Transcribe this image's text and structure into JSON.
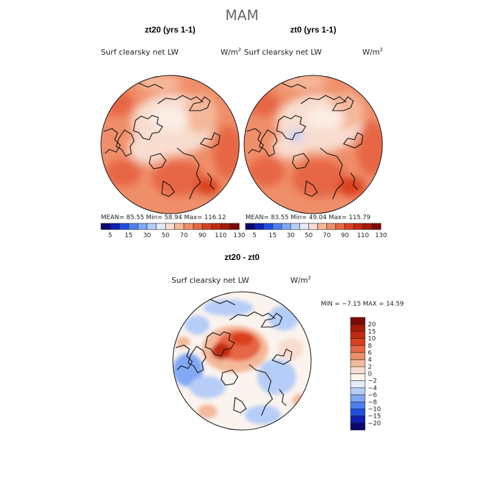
{
  "season_title": "MAM",
  "panels": {
    "zt20": {
      "title": "zt20 (yrs 1-1)",
      "variable": "Surf clearsky net LW",
      "units": "W/m",
      "units_sup": "2",
      "stats": "MEAN=   85.55   Min=   58.94   Max=  116.12"
    },
    "zt0": {
      "title": "zt0 (yrs 1-1)",
      "variable": "Surf clearsky net LW",
      "units": "W/m",
      "units_sup": "2",
      "stats": "MEAN=   83.55   Min=   49.04   Max=  115.79"
    },
    "diff": {
      "title": "zt20 - zt0",
      "variable": "Surf clearsky net LW",
      "units": "W/m",
      "units_sup": "2",
      "stats": "MIN =   −7.15  MAX =   14.59"
    }
  },
  "chart_data": [
    {
      "type": "heatmap",
      "title": "zt20 (yrs 1-1)",
      "subtitle": "Surf clearsky net LW",
      "units": "W/m2",
      "projection": "north-polar-stereographic",
      "mean": 85.55,
      "min": 58.94,
      "max": 116.12,
      "colorbar_levels": [
        5,
        15,
        30,
        50,
        70,
        90,
        110,
        130
      ]
    },
    {
      "type": "heatmap",
      "title": "zt0 (yrs 1-1)",
      "subtitle": "Surf clearsky net LW",
      "units": "W/m2",
      "projection": "north-polar-stereographic",
      "mean": 83.55,
      "min": 49.04,
      "max": 115.79,
      "colorbar_levels": [
        5,
        15,
        30,
        50,
        70,
        90,
        110,
        130
      ]
    },
    {
      "type": "heatmap",
      "title": "zt20 - zt0",
      "subtitle": "Surf clearsky net LW",
      "units": "W/m2",
      "projection": "north-polar-stereographic",
      "min": -7.15,
      "max": 14.59,
      "colorbar_levels": [
        20,
        15,
        10,
        8,
        6,
        4,
        2,
        0,
        -2,
        -4,
        -6,
        -8,
        -10,
        -15,
        -20
      ]
    }
  ],
  "abs_colorbar": {
    "labels": [
      "5",
      "15",
      "30",
      "50",
      "70",
      "90",
      "110",
      "130"
    ],
    "colors": [
      "#08086e",
      "#0d1fb5",
      "#1f4fe0",
      "#4d7ff0",
      "#80a8f5",
      "#b6cdf7",
      "#e3ecf9",
      "#f8ddd0",
      "#f4b89a",
      "#ef8f6a",
      "#e76644",
      "#d9401f",
      "#c22a0e",
      "#a51a08",
      "#7a0a03"
    ]
  },
  "diff_colorbar": {
    "labels": [
      "20",
      "15",
      "10",
      "8",
      "6",
      "4",
      "2",
      "0",
      "−2",
      "−4",
      "−6",
      "−8",
      "−10",
      "−15",
      "−20"
    ],
    "colors": [
      "#7a0a03",
      "#a51a08",
      "#c22a0e",
      "#d9401f",
      "#e76644",
      "#ef8f6a",
      "#f4b89a",
      "#f8ddd0",
      "#fbf3ee",
      "#e3ecf9",
      "#b6cdf7",
      "#80a8f5",
      "#4d7ff0",
      "#1f4fe0",
      "#0d1fb5",
      "#08086e"
    ]
  }
}
